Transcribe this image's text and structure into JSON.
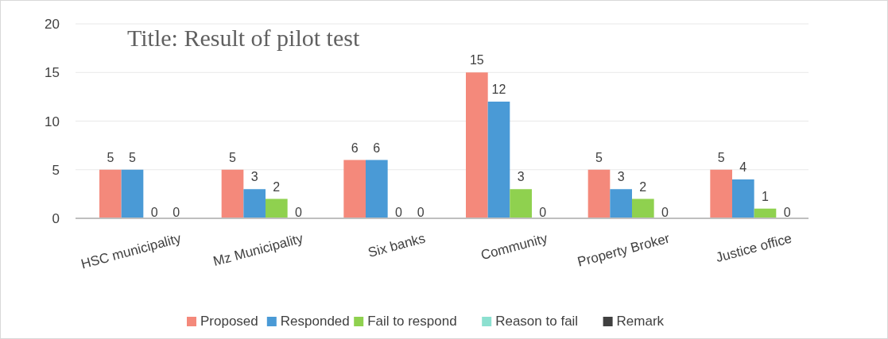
{
  "chart_data": {
    "type": "bar",
    "title": "Title: Result of pilot test",
    "categories": [
      "HSC municipality",
      "Mz Municipality",
      "Six banks",
      "Community",
      "Property Broker",
      "Justice office"
    ],
    "series": [
      {
        "name": "Proposed",
        "color": "#f4897b",
        "values": [
          5,
          5,
          6,
          15,
          5,
          5
        ]
      },
      {
        "name": "Responded",
        "color": "#4a9ad6",
        "values": [
          5,
          3,
          6,
          12,
          3,
          4
        ]
      },
      {
        "name": "Fail to respond",
        "color": "#8fd14f",
        "values": [
          0,
          2,
          0,
          3,
          2,
          1
        ]
      },
      {
        "name": "Reason to fail",
        "color": "#8ce0d0",
        "values": [
          0,
          0,
          0,
          0,
          0,
          0
        ]
      },
      {
        "name": "Remark",
        "color": "#404040",
        "values": [
          null,
          null,
          null,
          null,
          null,
          null
        ]
      }
    ],
    "ylim": [
      0,
      20
    ],
    "yticks": [
      0,
      5,
      10,
      15,
      20
    ],
    "grid": "y",
    "legend": "bottom",
    "data_labels": true
  }
}
